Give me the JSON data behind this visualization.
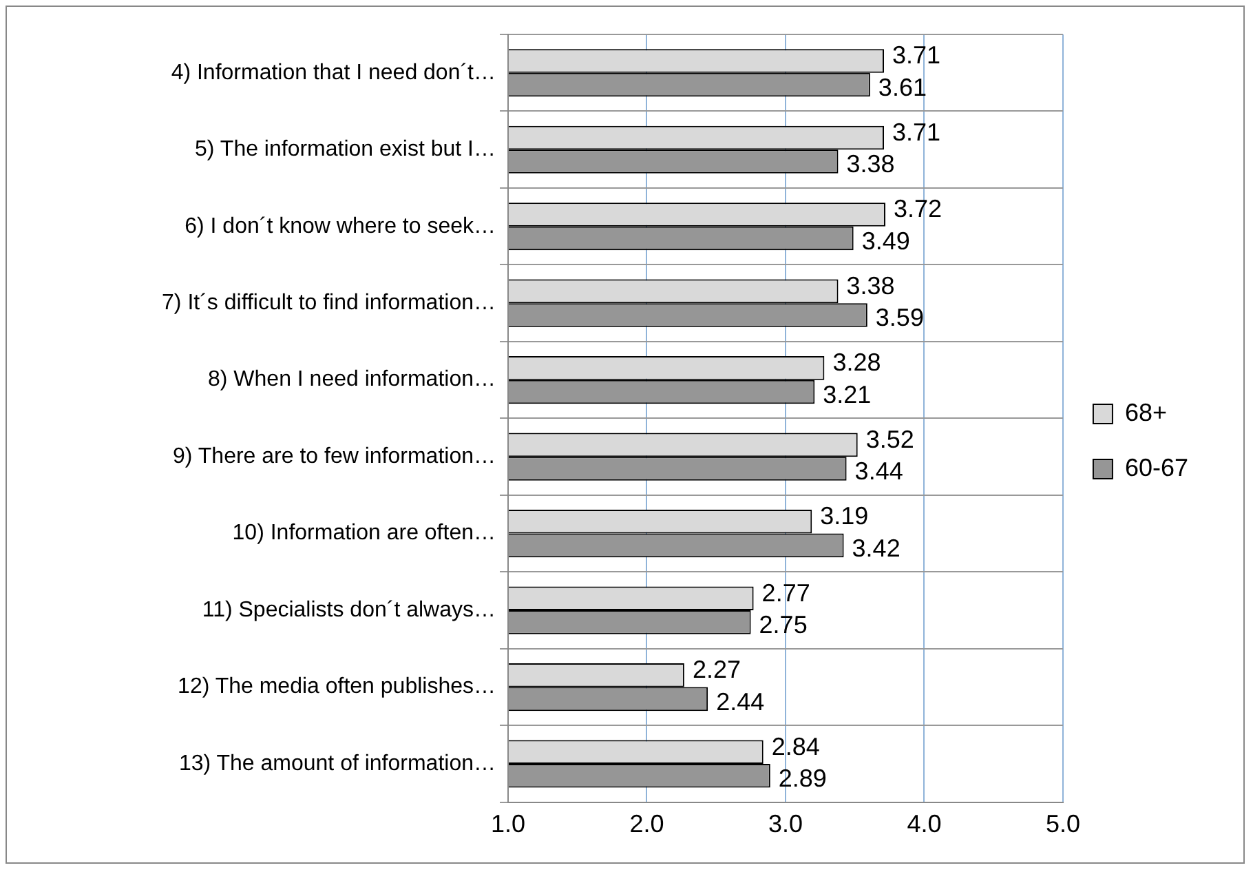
{
  "chart_data": {
    "type": "bar",
    "orientation": "horizontal",
    "categories": [
      "4) Information that I need don´t…",
      "5) The information exist but I…",
      "6) I don´t know where to seek…",
      "7) It´s difficult to find information…",
      "8) When I need information…",
      "9) There are to few information…",
      "10) Information are often…",
      "11) Specialists don´t always…",
      "12) The media often publishes…",
      "13) The amount of information…"
    ],
    "series": [
      {
        "name": "68+",
        "color": "#d9d9d9",
        "values": [
          3.71,
          3.71,
          3.72,
          3.38,
          3.28,
          3.52,
          3.19,
          2.77,
          2.27,
          2.84
        ]
      },
      {
        "name": "60-67",
        "color": "#969696",
        "values": [
          3.61,
          3.38,
          3.49,
          3.59,
          3.21,
          3.44,
          3.42,
          2.75,
          2.44,
          2.89
        ]
      }
    ],
    "xlim": [
      1,
      5
    ],
    "xticks": [
      {
        "value": 1,
        "label": "1.0"
      },
      {
        "value": 2,
        "label": "2.0"
      },
      {
        "value": 3,
        "label": "3.0"
      },
      {
        "value": 4,
        "label": "4.0"
      },
      {
        "value": 5,
        "label": "5.0"
      }
    ],
    "grid": true,
    "legend": "right",
    "data_labels": true
  }
}
